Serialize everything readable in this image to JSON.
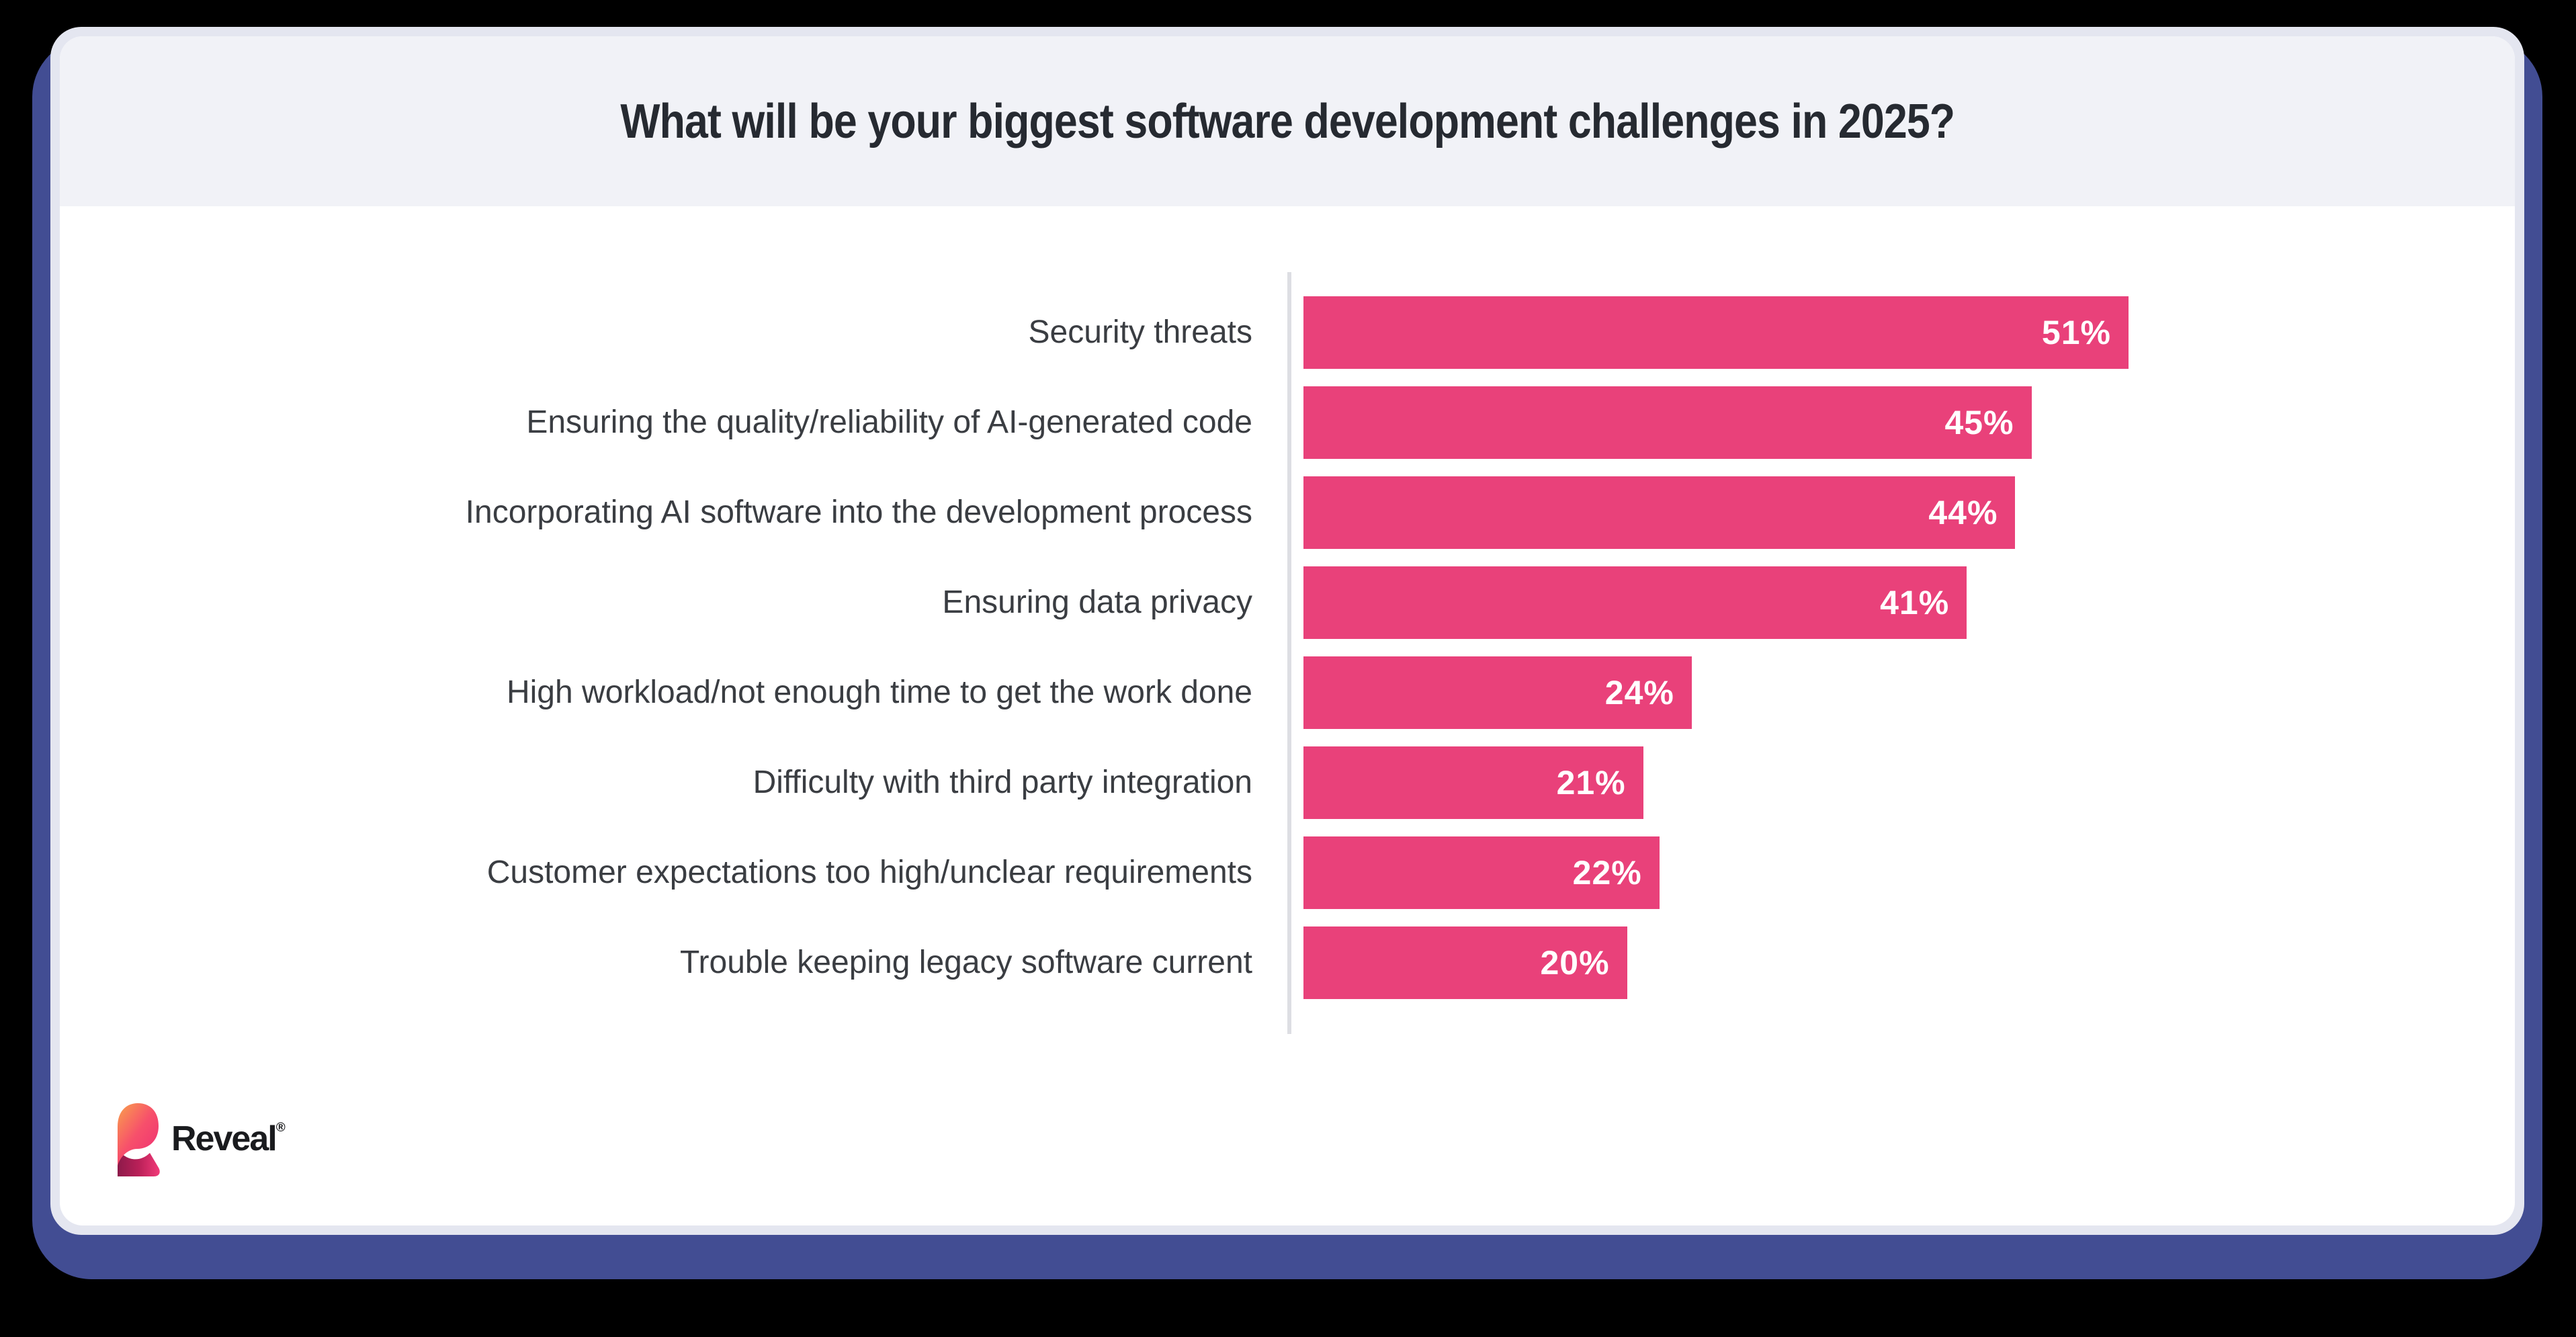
{
  "header": {
    "title": "What will be your biggest software development challenges in 2025?"
  },
  "chart_data": {
    "type": "bar",
    "orientation": "horizontal",
    "title": "What will be your biggest software development challenges in 2025?",
    "categories": [
      "Security threats",
      "Ensuring the quality/reliability of AI-generated code",
      "Incorporating AI software into the development process",
      "Ensuring data privacy",
      "High workload/not enough time to get the work done",
      "Difficulty with third party integration",
      "Customer expectations too high/unclear requirements",
      "Trouble keeping legacy software current"
    ],
    "values": [
      51,
      45,
      44,
      41,
      24,
      21,
      22,
      20
    ],
    "value_suffix": "%",
    "value_labels_position": "inside-end",
    "xlim": [
      0,
      51
    ],
    "grid": false,
    "legend": "none"
  },
  "logo": {
    "text": "Reveal",
    "registered": "®"
  },
  "colors": {
    "page_bg": "#000000",
    "frame_navy": "#424D93",
    "card_border": "#E4E6F0",
    "card_bg": "#FFFFFF",
    "header_bg": "#F1F2F7",
    "title_text": "#262A31",
    "category_text": "#3A3D42",
    "bar_pink": "#E9417A",
    "value_text": "#FFFFFF",
    "axis_line": "#DDDEE3",
    "logo_text": "#1A1B1E",
    "logo_gradient_orange": "#F9A14B",
    "logo_gradient_pink": "#EE2E74",
    "logo_gradient_maroon": "#8D1A4A"
  }
}
